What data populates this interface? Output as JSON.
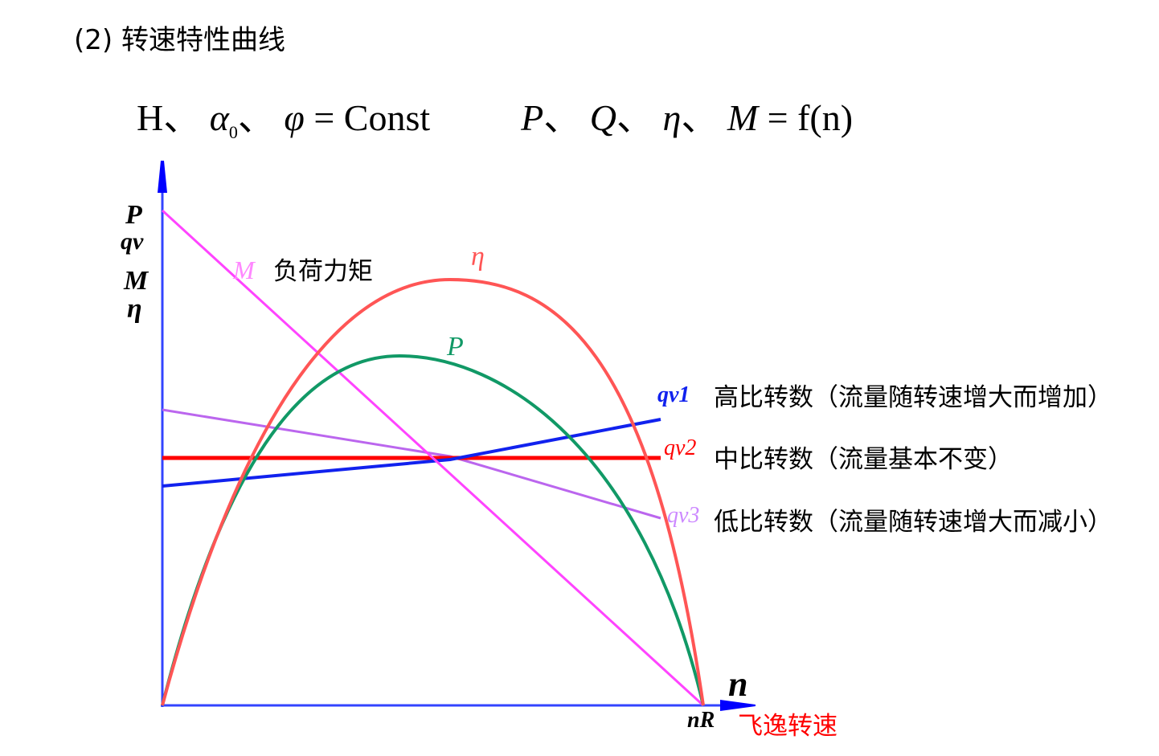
{
  "title": "(2) 转速特性曲线",
  "formula": {
    "constants": [
      "H",
      "α",
      "0",
      "φ"
    ],
    "constants_rhs": "= Const",
    "variables": [
      "P",
      "Q",
      "η",
      "M"
    ],
    "variables_rhs": "= f(n)",
    "separator": "、"
  },
  "axes": {
    "y_labels": [
      "P",
      "qv",
      "M",
      "η"
    ],
    "x_label": "n",
    "x_end_label": "nR"
  },
  "curves": {
    "M": {
      "label": "M",
      "note": "负荷力矩",
      "color": "#ff44ff"
    },
    "eta": {
      "label": "η",
      "color": "#ff5555"
    },
    "P": {
      "label": "P",
      "color": "#119966"
    },
    "qv1": {
      "label": "qv1",
      "note": "高比转数（流量随转速增大而增加）",
      "color": "#1122ee"
    },
    "qv2": {
      "label": "qv2",
      "note": "中比转数（流量基本不变）",
      "color": "#ff0000"
    },
    "qv3": {
      "label": "qv3",
      "note": "低比转数（流量随转速增大而减小）",
      "color": "#bb66ee"
    }
  },
  "runaway_label": "飞逸转速",
  "runaway_color": "#ff0000",
  "axis_color": "#3344ff"
}
